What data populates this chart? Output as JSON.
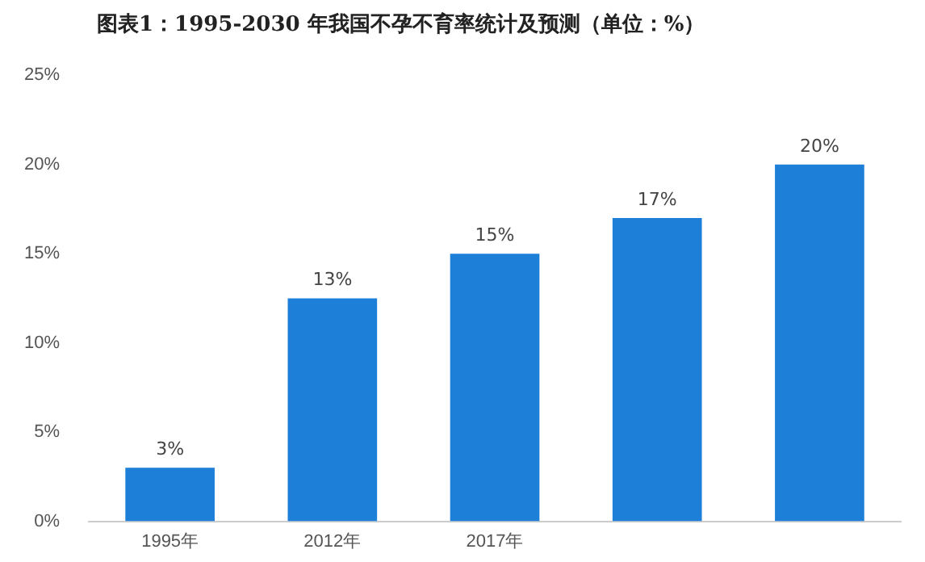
{
  "chart_data": {
    "type": "bar",
    "title": "图表1：1995-2030 年我国不孕不育率统计及预测（单位：%）",
    "categories": [
      "1995年",
      "2012年",
      "2017年",
      null,
      null
    ],
    "values": [
      3,
      12.5,
      15,
      17,
      20
    ],
    "value_labels": [
      "3%",
      "13%",
      "15%",
      "17%",
      "20%"
    ],
    "color": "#1e7fd8",
    "ylim": [
      0,
      25
    ],
    "yticks": [
      {
        "value": 0,
        "label": "0%"
      },
      {
        "value": 5,
        "label": "5%"
      },
      {
        "value": 10,
        "label": "10%"
      },
      {
        "value": 15,
        "label": "15%"
      },
      {
        "value": 20,
        "label": "20%"
      },
      {
        "value": 25,
        "label": "25%"
      }
    ],
    "grid": false,
    "legend": false
  }
}
